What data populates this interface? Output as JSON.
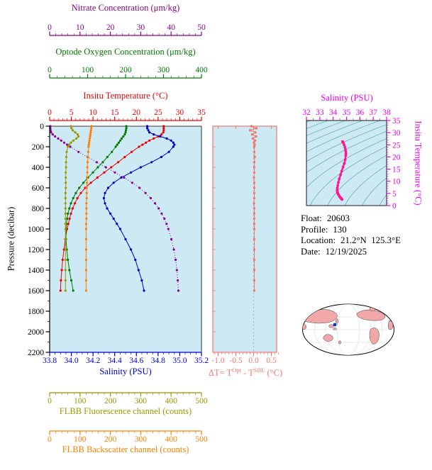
{
  "info": {
    "float_label": "Float:",
    "float_value": "20603",
    "profile_label": "Profile:",
    "profile_value": "130",
    "location_label": "Location:",
    "location_value": "21.2°N  125.3°E",
    "date_label": "Date:",
    "date_value": "12/19/2025"
  },
  "chart_data": {
    "type": "line",
    "plot_bg": "#CDE9F3",
    "pressure_dbar": [
      0,
      20,
      40,
      60,
      80,
      100,
      120,
      140,
      160,
      180,
      200,
      250,
      300,
      350,
      400,
      450,
      500,
      550,
      600,
      650,
      700,
      750,
      800,
      850,
      900,
      950,
      1000,
      1100,
      1200,
      1300,
      1400,
      1500,
      1600
    ],
    "series": [
      {
        "name": "Insitu Temperature",
        "units": "°C",
        "axis": "temperature",
        "color": "#EE0000",
        "values": [
          26.3,
          26.3,
          26.3,
          26.2,
          25.8,
          25.0,
          24.0,
          23.0,
          22.2,
          21.4,
          20.6,
          18.9,
          17.3,
          15.8,
          14.2,
          12.6,
          11.0,
          9.5,
          8.2,
          7.2,
          6.4,
          5.8,
          5.3,
          4.9,
          4.6,
          4.3,
          4.0,
          3.6,
          3.3,
          3.0,
          2.8,
          2.6,
          2.5
        ]
      },
      {
        "name": "Salinity",
        "units": "PSU",
        "axis": "salinity",
        "color": "#0000CD",
        "values": [
          34.7,
          34.7,
          34.71,
          34.72,
          34.76,
          34.82,
          34.88,
          34.92,
          34.94,
          34.95,
          34.94,
          34.9,
          34.83,
          34.74,
          34.64,
          34.55,
          34.46,
          34.39,
          34.34,
          34.31,
          34.3,
          34.31,
          34.33,
          34.36,
          34.39,
          34.42,
          34.45,
          34.5,
          34.55,
          34.59,
          34.62,
          34.65,
          34.67
        ]
      },
      {
        "name": "Optode Oxygen Concentration",
        "units": "μm/kg",
        "axis": "oxygen",
        "color": "#007A00",
        "values": [
          202,
          202,
          201,
          200,
          198,
          194,
          190,
          186,
          182,
          178,
          174,
          164,
          152,
          140,
          127,
          114,
          101,
          89,
          78,
          69,
          62,
          56,
          52,
          48,
          46,
          44,
          43,
          43,
          45,
          48,
          52,
          57,
          62
        ]
      },
      {
        "name": "Nitrate Concentration",
        "units": "μm/kg",
        "axis": "nitrate",
        "color": "#8B008B",
        "dash": "1,2.5",
        "values": [
          0.2,
          0.2,
          0.3,
          0.5,
          1.0,
          1.8,
          2.8,
          3.8,
          4.8,
          5.8,
          6.8,
          9.5,
          12.5,
          15.5,
          18.5,
          21.5,
          24.5,
          27.2,
          29.6,
          31.6,
          33.3,
          34.7,
          35.9,
          36.9,
          37.8,
          38.5,
          39.1,
          40.1,
          40.9,
          41.5,
          41.9,
          42.2,
          42.4
        ]
      },
      {
        "name": "FLBB Fluorescence channel",
        "units": "counts",
        "axis": "fluorescence",
        "color": "#999900",
        "values": [
          70,
          72,
          76,
          84,
          92,
          95,
          88,
          78,
          70,
          64,
          60,
          56,
          55,
          54,
          54,
          53,
          53,
          53,
          53,
          52,
          52,
          52,
          52,
          52,
          52,
          52,
          52,
          52,
          52,
          52,
          52,
          52,
          52
        ]
      },
      {
        "name": "FLBB Backscatter channel",
        "units": "counts",
        "axis": "backscatter",
        "color": "#FF8000",
        "values": [
          138,
          137,
          136,
          135,
          134,
          133,
          132,
          131,
          130,
          129,
          128,
          127,
          126,
          125,
          124,
          124,
          123,
          123,
          122,
          122,
          122,
          121,
          121,
          121,
          121,
          120,
          120,
          120,
          120,
          120,
          120,
          120,
          120
        ]
      },
      {
        "name": "Delta T (Optode minus SBE)",
        "units": "°C",
        "axis": "deltaT",
        "color": "#F4776F",
        "values": [
          -0.06,
          0.08,
          -0.1,
          0.05,
          -0.04,
          0.07,
          -0.02,
          0.04,
          0.01,
          0.03,
          0.02,
          0.02,
          0.03,
          0.02,
          0.02,
          0.02,
          0.01,
          0.02,
          0.02,
          0.02,
          0.02,
          0.01,
          0.02,
          0.02,
          0.02,
          0.02,
          0.02,
          0.02,
          0.02,
          0.02,
          0.02,
          0.02,
          0.02
        ]
      }
    ],
    "axes": {
      "nitrate": {
        "title": "Nitrate Concentration (μm/kg)",
        "min": 0,
        "max": 50,
        "ticks": [
          "0",
          "10",
          "20",
          "30",
          "40",
          "50"
        ],
        "color": "#8B008B"
      },
      "oxygen": {
        "title": "Optode Oxygen Concentration (μm/kg)",
        "min": 0,
        "max": 400,
        "ticks": [
          "0",
          "100",
          "200",
          "300",
          "400"
        ],
        "color": "#007A00"
      },
      "temperature": {
        "title": "Insitu Temperature (°C)",
        "min": 0,
        "max": 35,
        "ticks": [
          "0",
          "5",
          "10",
          "15",
          "20",
          "25",
          "30",
          "35"
        ],
        "color": "#EE0000"
      },
      "salinity": {
        "title": "Salinity (PSU)",
        "min": 33.8,
        "max": 35.2,
        "ticks": [
          "33.8",
          "34.0",
          "34.2",
          "34.4",
          "34.6",
          "34.8",
          "35.0",
          "35.2"
        ],
        "color": "#0000CD"
      },
      "pressure": {
        "title": "Pressure (decibar)",
        "min": 0,
        "max": 2200,
        "ticks": [
          "0",
          "200",
          "400",
          "600",
          "800",
          "1000",
          "1200",
          "1400",
          "1600",
          "1800",
          "2000",
          "2200"
        ],
        "color": "#000000"
      },
      "deltaT": {
        "min": -1.15,
        "max": 0.65,
        "ticks": [
          "-1.0",
          "-0.5",
          "0.0",
          "0.5"
        ],
        "color": "#F4776F",
        "title_parts": {
          "p1": "ΔT= T",
          "sup1": "Opt",
          "p2": " - T",
          "sup2": "SBE",
          "p3": " (°C)"
        }
      },
      "fluorescence": {
        "title": "FLBB Fluorescence channel (counts)",
        "min": 0,
        "max": 500,
        "ticks": [
          "0",
          "100",
          "200",
          "300",
          "400",
          "500"
        ],
        "color": "#999900"
      },
      "backscatter": {
        "title": "FLBB Backscatter channel (counts)",
        "min": 0,
        "max": 500,
        "ticks": [
          "0",
          "100",
          "200",
          "300",
          "400",
          "500"
        ],
        "color": "#FF8000"
      }
    },
    "ts_plot": {
      "x_title": "Salinity (PSU)",
      "y_title": "Insitu Temperature (°C)",
      "xlim": [
        32,
        38
      ],
      "ylim": [
        0,
        35
      ],
      "x_ticks": [
        "32",
        "33",
        "34",
        "35",
        "36",
        "37",
        "38"
      ],
      "y_ticks": [
        "0",
        "5",
        "10",
        "15",
        "20",
        "25",
        "30",
        "35"
      ],
      "label_color": "#EE00EE",
      "curve_color": "#FF1493",
      "contour_color": "#5FA8A8",
      "contour_levels": [
        18,
        19,
        20,
        21,
        22,
        23,
        24,
        25,
        26,
        27,
        28,
        29,
        30
      ],
      "bg": "#CDE9F3"
    }
  }
}
